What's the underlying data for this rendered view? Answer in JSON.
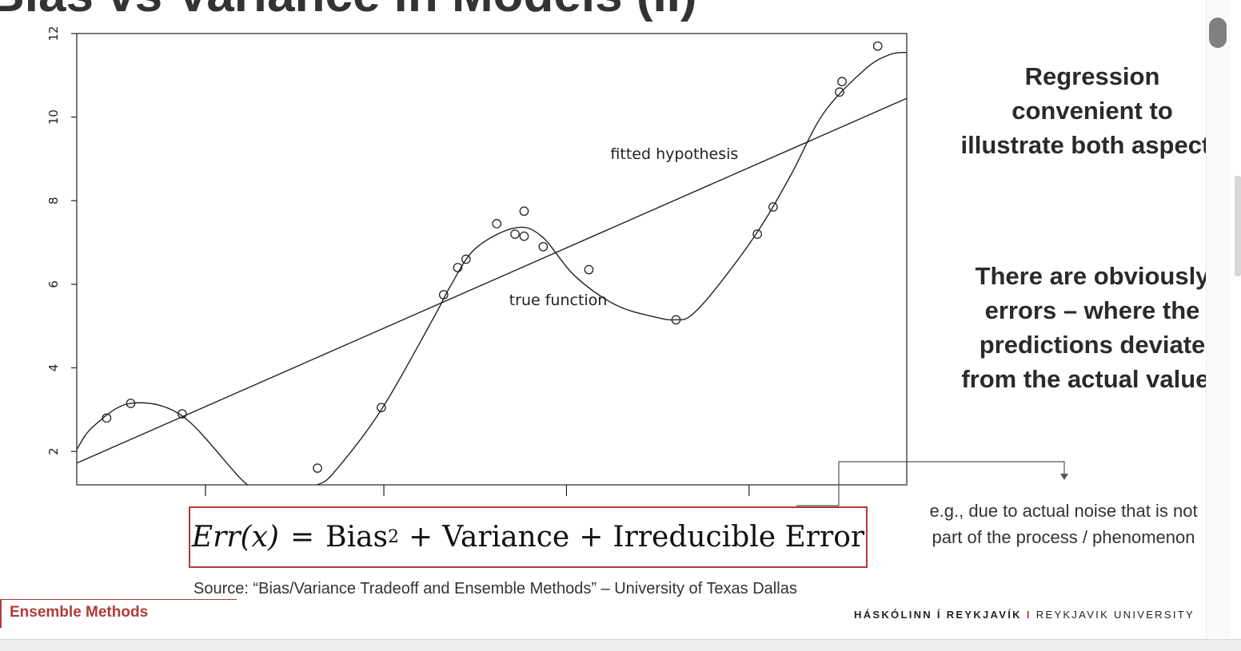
{
  "slide": {
    "title": "Bias vs Variance in Models (II)",
    "right_text_1": [
      "Regression",
      "convenient to",
      "illustrate both aspects"
    ],
    "right_text_2": [
      "There are obviously",
      "errors – where the",
      "predictions deviate",
      "from the actual values"
    ],
    "note_lines": [
      "e.g., due to actual noise that is not",
      "part of the process / phenomenon"
    ],
    "formula": {
      "lhs": "Err(x)",
      "equals": "=",
      "bias": "Bias",
      "exponent": "2",
      "plus": "+",
      "variance": "Variance",
      "irreducible": "Irreducible Error"
    },
    "source": "Source: “Bias/Variance Tradeoff and  Ensemble Methods” – University of Texas Dallas",
    "footer_left": "Ensemble Methods",
    "footer_right_bold": "HÁSKÓLINN Í REYKJAVÍK",
    "footer_right_sep": "I",
    "footer_right_plain": "REYKJAVIK UNIVERSITY"
  },
  "chart_data": {
    "type": "scatter",
    "ylim": [
      1.2,
      12
    ],
    "xlim": [
      0,
      1
    ],
    "yticks": [
      2,
      4,
      6,
      8,
      10,
      12
    ],
    "xticks": [
      0.155,
      0.37,
      0.59,
      0.81
    ],
    "points": [
      {
        "x": 0.036,
        "y": 2.8
      },
      {
        "x": 0.065,
        "y": 3.15
      },
      {
        "x": 0.127,
        "y": 2.9
      },
      {
        "x": 0.29,
        "y": 1.6
      },
      {
        "x": 0.367,
        "y": 3.05
      },
      {
        "x": 0.442,
        "y": 5.75
      },
      {
        "x": 0.459,
        "y": 6.4
      },
      {
        "x": 0.469,
        "y": 6.6
      },
      {
        "x": 0.506,
        "y": 7.45
      },
      {
        "x": 0.528,
        "y": 7.2
      },
      {
        "x": 0.539,
        "y": 7.15
      },
      {
        "x": 0.539,
        "y": 7.75
      },
      {
        "x": 0.562,
        "y": 6.9
      },
      {
        "x": 0.617,
        "y": 6.35
      },
      {
        "x": 0.722,
        "y": 5.15
      },
      {
        "x": 0.82,
        "y": 7.2
      },
      {
        "x": 0.839,
        "y": 7.85
      },
      {
        "x": 0.919,
        "y": 10.6
      },
      {
        "x": 0.922,
        "y": 10.85
      },
      {
        "x": 0.965,
        "y": 11.7
      }
    ],
    "fitted_line": {
      "label": "fitted hypothesis",
      "x": [
        0,
        1
      ],
      "y": [
        1.72,
        10.45
      ]
    },
    "true_function": {
      "label": "true function",
      "x": [
        0,
        0.02,
        0.065,
        0.127,
        0.2,
        0.225,
        0.27,
        0.29,
        0.31,
        0.367,
        0.43,
        0.45,
        0.48,
        0.528,
        0.56,
        0.6,
        0.65,
        0.7,
        0.722,
        0.74,
        0.77,
        0.82,
        0.86,
        0.9,
        0.95,
        0.98,
        1
      ],
      "y": [
        2.05,
        2.6,
        3.15,
        2.85,
        1.3,
        1.05,
        1.05,
        1.2,
        1.5,
        3.0,
        5.2,
        5.95,
        6.85,
        7.35,
        7.15,
        6.2,
        5.5,
        5.2,
        5.15,
        5.25,
        5.9,
        7.25,
        8.6,
        10.1,
        11.15,
        11.5,
        11.55
      ]
    },
    "annotations": [
      {
        "text": "fitted hypothesis",
        "x": 0.72,
        "y": 9.0
      },
      {
        "text": "true function",
        "x": 0.58,
        "y": 5.5
      }
    ]
  }
}
